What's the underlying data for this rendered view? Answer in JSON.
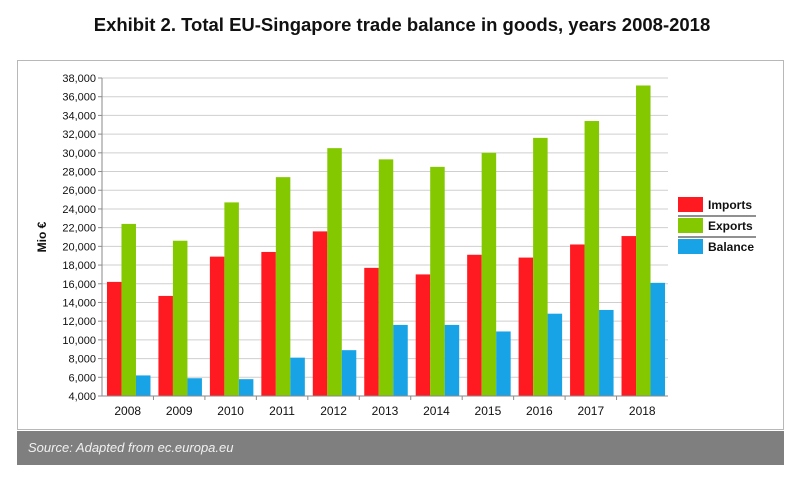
{
  "title": "Exhibit 2. Total EU-Singapore trade balance in goods, years 2008-2018",
  "source": "Source: Adapted from ec.europa.eu",
  "colors": {
    "imports": "#ff1a22",
    "exports": "#84c800",
    "balance": "#17a3e6",
    "grid": "#cfcfcf",
    "axis": "#8a8a8a"
  },
  "chart_data": {
    "type": "bar",
    "title": "Exhibit 2. Total EU-Singapore trade balance in goods, years 2008-2018",
    "xlabel": "",
    "ylabel": "Mio €",
    "ylim": [
      4000,
      38000
    ],
    "yticks": [
      "4,000",
      "6,000",
      "8,000",
      "10,000",
      "12,000",
      "14,000",
      "16,000",
      "18,000",
      "20,000",
      "22,000",
      "24,000",
      "26,000",
      "28,000",
      "30,000",
      "32,000",
      "34,000",
      "36,000",
      "38,000"
    ],
    "categories": [
      "2008",
      "2009",
      "2010",
      "2011",
      "2012",
      "2013",
      "2014",
      "2015",
      "2016",
      "2017",
      "2018"
    ],
    "series": [
      {
        "name": "Imports",
        "values": [
          16200,
          14700,
          18900,
          19400,
          21600,
          17700,
          17000,
          19100,
          18800,
          20200,
          21100
        ]
      },
      {
        "name": "Exports",
        "values": [
          22400,
          20600,
          24700,
          27400,
          30500,
          29300,
          28500,
          30000,
          31600,
          33400,
          37200
        ]
      },
      {
        "name": "Balance",
        "values": [
          6200,
          5900,
          5800,
          8100,
          8900,
          11600,
          11600,
          10900,
          12800,
          13200,
          16100
        ]
      }
    ],
    "grid": true,
    "legend": "right"
  }
}
